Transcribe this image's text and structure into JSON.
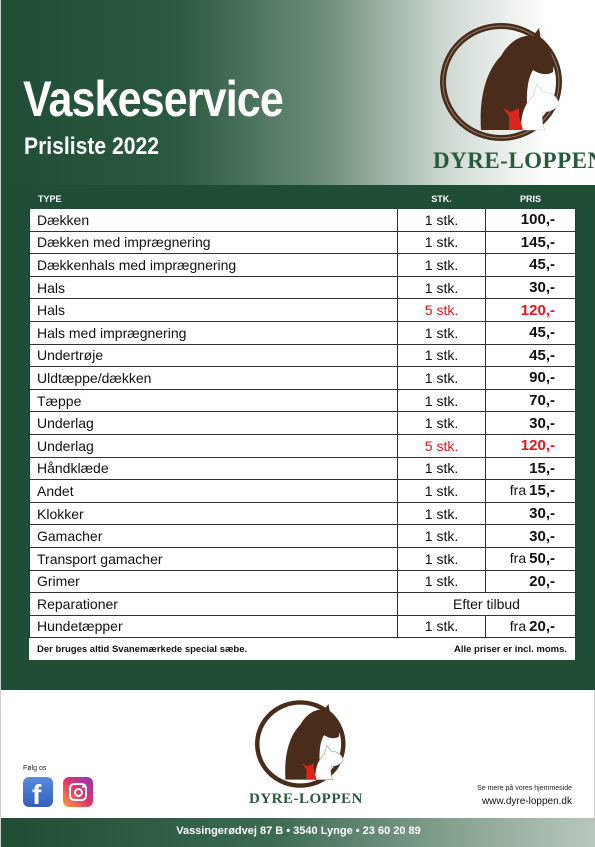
{
  "header": {
    "title": "Vaskeservice",
    "subtitle": "Prisliste 2022"
  },
  "brand": {
    "logo_text": "Dyre-loppen",
    "logo_icon": "horse-dog-cat-icon"
  },
  "table": {
    "headers": [
      "TYPE",
      "STK.",
      "PRIS"
    ],
    "rows": [
      {
        "type": "Dækken",
        "qty": "1 stk.",
        "prefix": "",
        "price": "100,-",
        "highlight": false
      },
      {
        "type": "Dækken med imprægnering",
        "qty": "1 stk.",
        "prefix": "",
        "price": "145,-",
        "highlight": false
      },
      {
        "type": "Dækkenhals med imprægnering",
        "qty": "1 stk.",
        "prefix": "",
        "price": "45,-",
        "highlight": false
      },
      {
        "type": "Hals",
        "qty": "1 stk.",
        "prefix": "",
        "price": "30,-",
        "highlight": false
      },
      {
        "type": "Hals",
        "qty": "5 stk.",
        "prefix": "",
        "price": "120,-",
        "highlight": true
      },
      {
        "type": "Hals med imprægnering",
        "qty": "1 stk.",
        "prefix": "",
        "price": "45,-",
        "highlight": false
      },
      {
        "type": "Undertrøje",
        "qty": "1 stk.",
        "prefix": "",
        "price": "45,-",
        "highlight": false
      },
      {
        "type": "Uldtæppe/dækken",
        "qty": "1 stk.",
        "prefix": "",
        "price": "90,-",
        "highlight": false
      },
      {
        "type": "Tæppe",
        "qty": "1 stk.",
        "prefix": "",
        "price": "70,-",
        "highlight": false
      },
      {
        "type": "Underlag",
        "qty": "1 stk.",
        "prefix": "",
        "price": "30,-",
        "highlight": false
      },
      {
        "type": "Underlag",
        "qty": "5 stk.",
        "prefix": "",
        "price": "120,-",
        "highlight": true
      },
      {
        "type": "Håndklæde",
        "qty": "1 stk.",
        "prefix": "",
        "price": "15,-",
        "highlight": false
      },
      {
        "type": "Andet",
        "qty": "1 stk.",
        "prefix": "fra",
        "price": "15,-",
        "highlight": false
      },
      {
        "type": "Klokker",
        "qty": "1 stk.",
        "prefix": "",
        "price": "30,-",
        "highlight": false
      },
      {
        "type": "Gamacher",
        "qty": "1 stk.",
        "prefix": "",
        "price": "30,-",
        "highlight": false
      },
      {
        "type": "Transport gamacher",
        "qty": "1 stk.",
        "prefix": "fra",
        "price": "50,-",
        "highlight": false
      },
      {
        "type": "Grimer",
        "qty": "1 stk.",
        "prefix": "",
        "price": "20,-",
        "highlight": false
      },
      {
        "type": "Reparationer",
        "span": "Efter tilbud"
      },
      {
        "type": "Hundetæpper",
        "qty": "1 stk.",
        "prefix": "fra",
        "price": "20,-",
        "highlight": false
      }
    ],
    "footnote_left": "Der bruges altid Svanemærkede special sæbe.",
    "footnote_right": "Alle priser er incl. moms."
  },
  "social": {
    "follow_label": "Følg os",
    "facebook_icon": "facebook-icon",
    "instagram_icon": "instagram-icon"
  },
  "website": {
    "note": "Se mere på vores hjemmeside",
    "url": "www.dyre-loppen.dk"
  },
  "footer": {
    "address": "Vassingerødvej 87 B  •  3540 Lynge  •  23 60 20 89"
  },
  "colors": {
    "brand_green": "#1f4d35",
    "highlight_red": "#e0141e",
    "logo_brown": "#4a2c1a"
  }
}
